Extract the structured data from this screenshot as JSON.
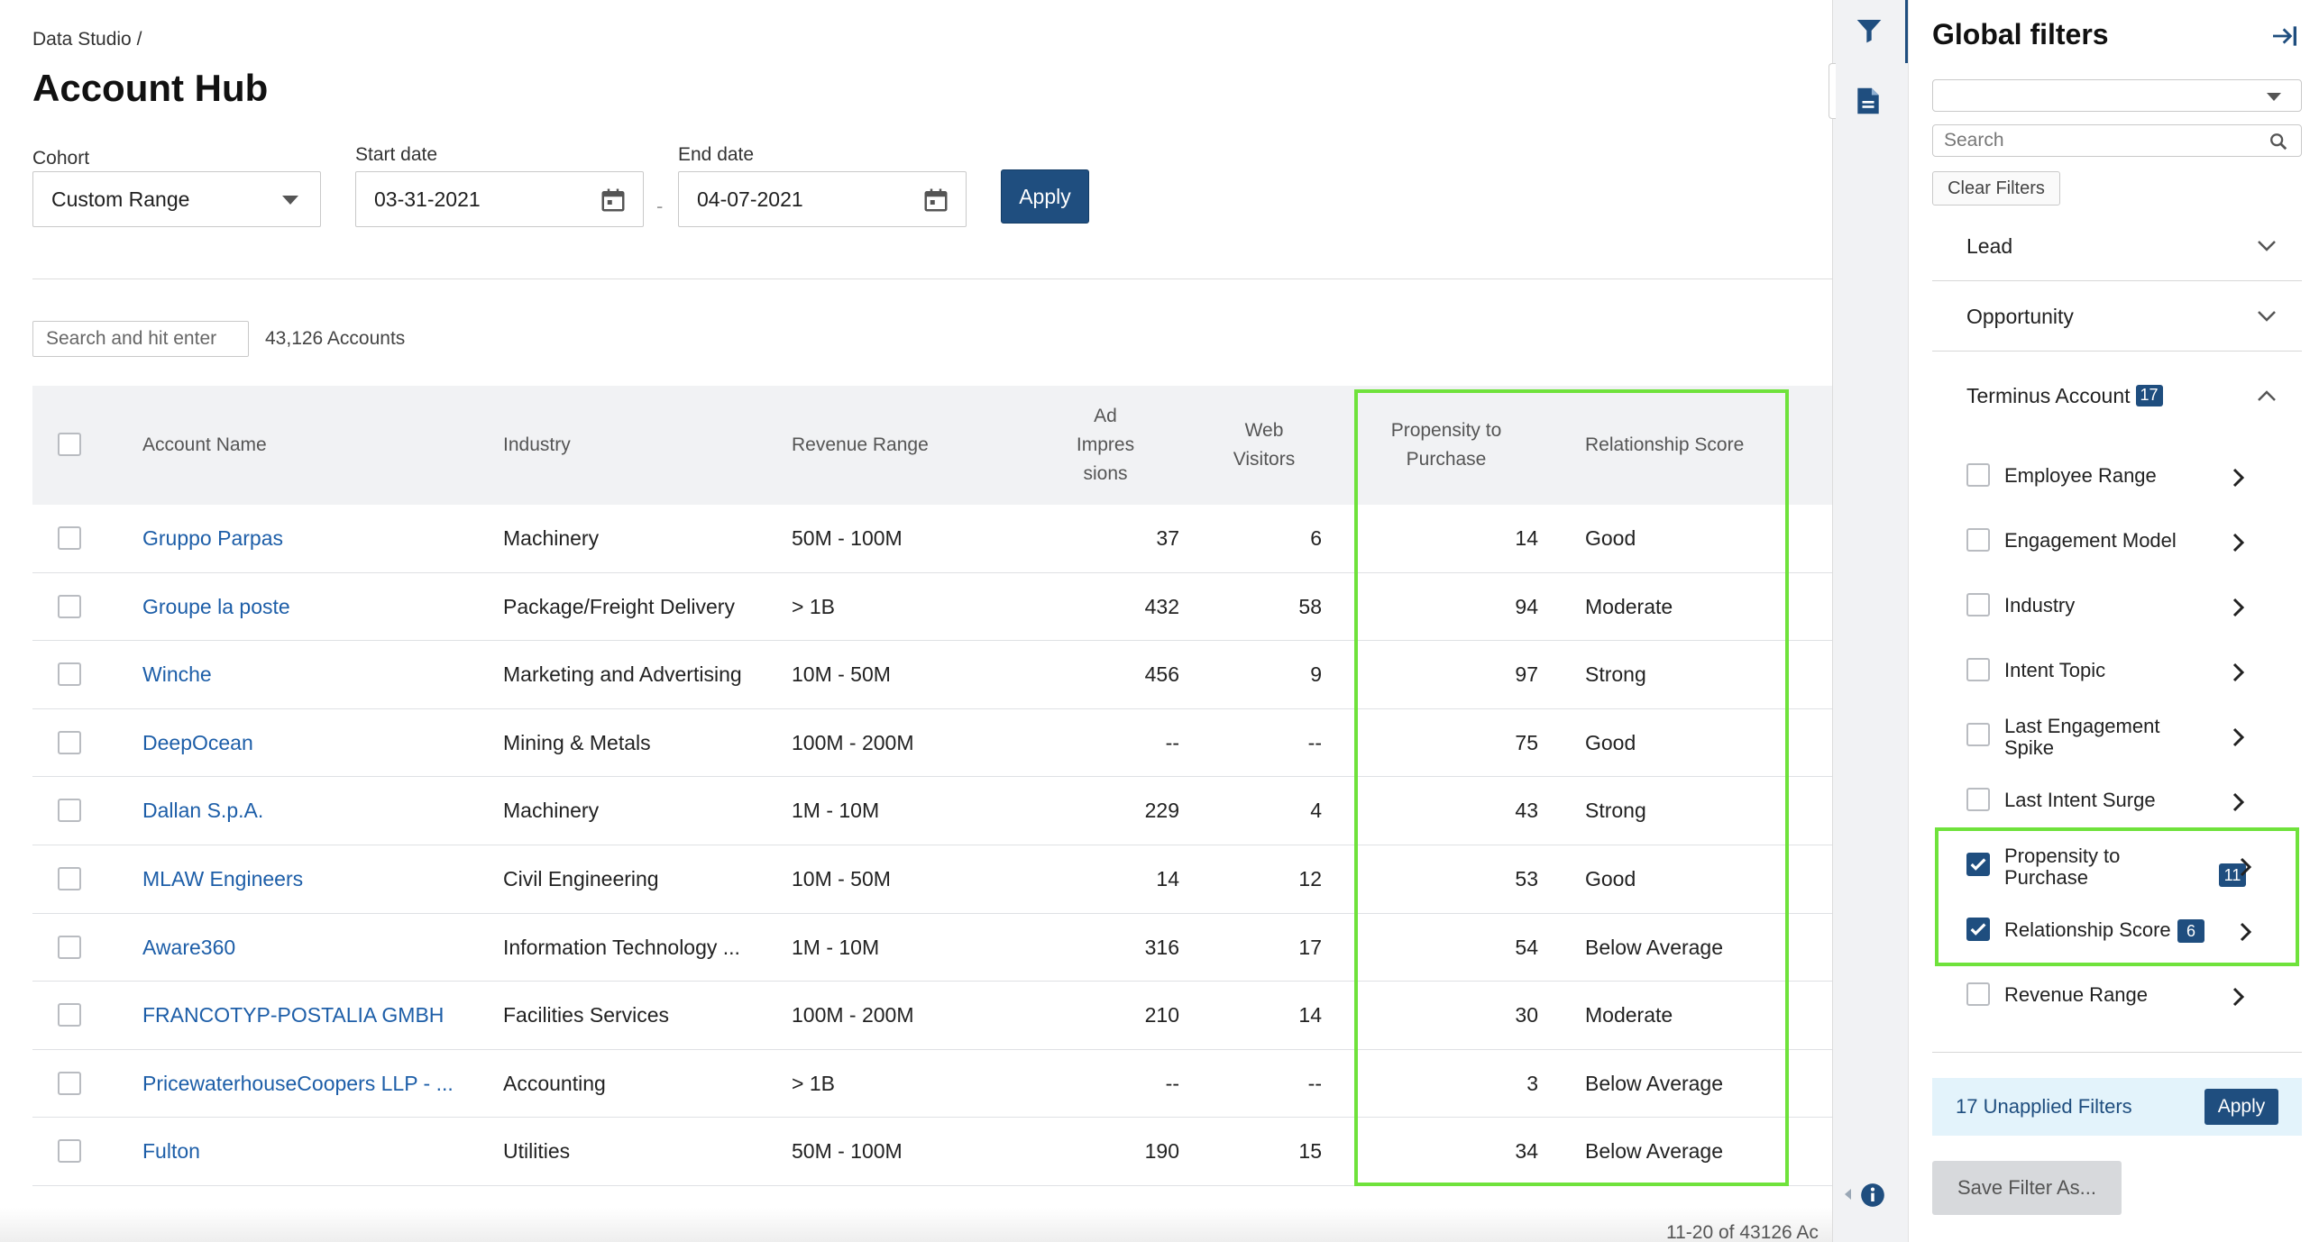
{
  "breadcrumb": "Data Studio /",
  "page_title": "Account Hub",
  "filters": {
    "cohort_label": "Cohort",
    "cohort_value": "Custom Range",
    "start_label": "Start date",
    "start_value": "03-31-2021",
    "end_label": "End date",
    "end_value": "04-07-2021",
    "dash": "-",
    "apply_label": "Apply"
  },
  "search": {
    "placeholder": "Search and hit enter",
    "count": "43,126 Accounts"
  },
  "table": {
    "headers": {
      "account_name": "Account Name",
      "industry": "Industry",
      "revenue_range": "Revenue Range",
      "ad_impressions": [
        "Ad",
        "Impres",
        "sions"
      ],
      "web_visitors": [
        "Web",
        "Visitors"
      ],
      "propensity": [
        "Propensity to",
        "Purchase"
      ],
      "relationship": "Relationship Score"
    },
    "rows": [
      {
        "name": "Gruppo Parpas",
        "industry": "Machinery",
        "revenue": "50M - 100M",
        "ad": "37",
        "web": "6",
        "propensity": "14",
        "relationship": "Good"
      },
      {
        "name": "Groupe la poste",
        "industry": "Package/Freight Delivery",
        "revenue": "> 1B",
        "ad": "432",
        "web": "58",
        "propensity": "94",
        "relationship": "Moderate"
      },
      {
        "name": "Winche",
        "industry": "Marketing and Advertising",
        "revenue": "10M - 50M",
        "ad": "456",
        "web": "9",
        "propensity": "97",
        "relationship": "Strong"
      },
      {
        "name": "DeepOcean",
        "industry": "Mining & Metals",
        "revenue": "100M - 200M",
        "ad": "--",
        "web": "--",
        "propensity": "75",
        "relationship": "Good"
      },
      {
        "name": "Dallan S.p.A.",
        "industry": "Machinery",
        "revenue": "1M - 10M",
        "ad": "229",
        "web": "4",
        "propensity": "43",
        "relationship": "Strong"
      },
      {
        "name": "MLAW Engineers",
        "industry": "Civil Engineering",
        "revenue": "10M - 50M",
        "ad": "14",
        "web": "12",
        "propensity": "53",
        "relationship": "Good"
      },
      {
        "name": "Aware360",
        "industry": "Information Technology ...",
        "revenue": "1M - 10M",
        "ad": "316",
        "web": "17",
        "propensity": "54",
        "relationship": "Below Average"
      },
      {
        "name": "FRANCOTYP-POSTALIA GMBH",
        "industry": "Facilities Services",
        "revenue": "100M - 200M",
        "ad": "210",
        "web": "14",
        "propensity": "30",
        "relationship": "Moderate"
      },
      {
        "name": "PricewaterhouseCoopers LLP - ...",
        "industry": "Accounting",
        "revenue": "> 1B",
        "ad": "--",
        "web": "--",
        "propensity": "3",
        "relationship": "Below Average"
      },
      {
        "name": "Fulton",
        "industry": "Utilities",
        "revenue": "50M - 100M",
        "ad": "190",
        "web": "15",
        "propensity": "34",
        "relationship": "Below Average"
      }
    ],
    "pager": "11-20 of 43126 Ac"
  },
  "rail": {
    "icons": [
      "filter-icon",
      "document-icon",
      "info-icon"
    ]
  },
  "panel": {
    "title": "Global filters",
    "search_placeholder": "Search",
    "clear_label": "Clear Filters",
    "sections": {
      "lead": "Lead",
      "opportunity": "Opportunity",
      "terminus": "Terminus Account",
      "terminus_badge": "17"
    },
    "items": [
      {
        "label": "Employee Range",
        "checked": false,
        "badge": ""
      },
      {
        "label": "Engagement Model",
        "checked": false,
        "badge": ""
      },
      {
        "label": "Industry",
        "checked": false,
        "badge": ""
      },
      {
        "label": "Intent Topic",
        "checked": false,
        "badge": ""
      },
      {
        "label": "Last Engagement Spike",
        "checked": false,
        "badge": ""
      },
      {
        "label": "Last Intent Surge",
        "checked": false,
        "badge": ""
      },
      {
        "label": "Propensity to Purchase",
        "checked": true,
        "badge": "11"
      },
      {
        "label": "Relationship Score",
        "checked": true,
        "badge": "6"
      },
      {
        "label": "Revenue Range",
        "checked": false,
        "badge": ""
      }
    ],
    "unapplied_text": "17 Unapplied Filters",
    "unapplied_apply": "Apply",
    "save_label": "Save Filter As..."
  },
  "colors": {
    "accent": "#1f4e7f",
    "link": "#1d5ea8",
    "highlight": "#6fe23b"
  }
}
